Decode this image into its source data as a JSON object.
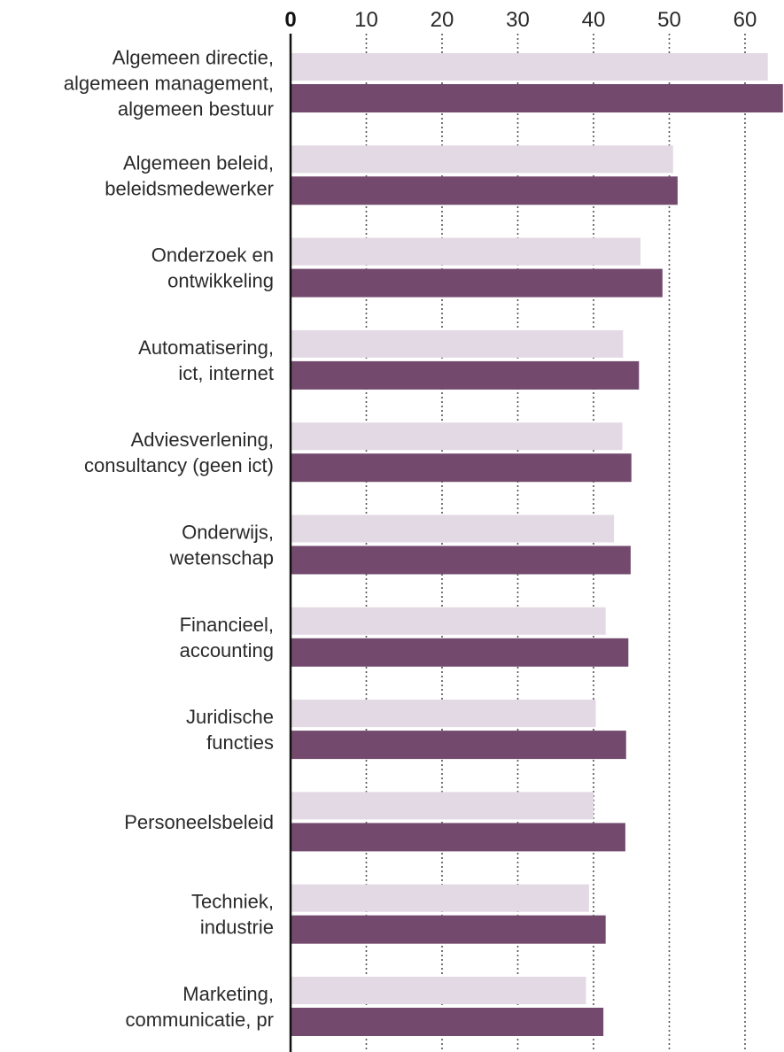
{
  "chart_data": {
    "type": "bar",
    "orientation": "horizontal",
    "title": "",
    "xlabel": "",
    "ylabel": "",
    "xlim": [
      0,
      65
    ],
    "ticks": [
      0,
      10,
      20,
      30,
      40,
      50,
      60
    ],
    "tick_labels": [
      "0",
      "10",
      "20",
      "30",
      "40",
      "50",
      "60"
    ],
    "grid": "vertical dotted",
    "legend": "none",
    "colors": {
      "series_light": "#e3d9e4",
      "series_dark": "#734a6d",
      "axis": "#111111",
      "grid": "#555555",
      "text": "#2a2a2a"
    },
    "categories": [
      [
        "Algemeen directie,",
        "algemeen management,",
        "algemeen bestuur"
      ],
      [
        "Algemeen beleid,",
        "beleidsmedewerker"
      ],
      [
        "Onderzoek en",
        "ontwikkeling"
      ],
      [
        "Automatisering,",
        "ict, internet"
      ],
      [
        "Adviesverlening,",
        "consultancy (geen ict)"
      ],
      [
        "Onderwijs,",
        "wetenschap"
      ],
      [
        "Financieel,",
        "accounting"
      ],
      [
        "Juridische",
        "functies"
      ],
      [
        "Personeelsbeleid"
      ],
      [
        "Techniek,",
        "industrie"
      ],
      [
        "Marketing,",
        "communicatie, pr"
      ]
    ],
    "series": [
      {
        "values": [
          63.0,
          50.5,
          46.2,
          43.9,
          43.8,
          42.7,
          41.6,
          40.3,
          40.0,
          39.4,
          39.0
        ]
      },
      {
        "values": [
          65.0,
          51.1,
          49.1,
          46.0,
          45.0,
          44.9,
          44.6,
          44.3,
          44.2,
          41.6,
          41.3
        ]
      }
    ]
  }
}
